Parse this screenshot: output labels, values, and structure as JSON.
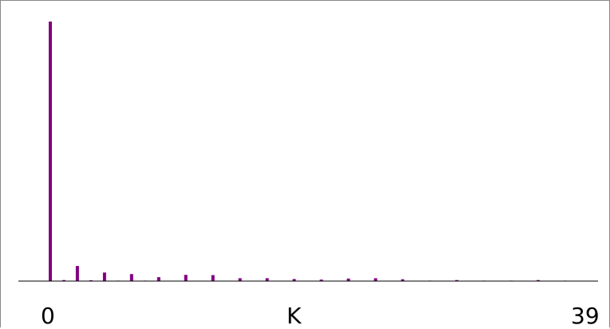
{
  "chart_data": {
    "type": "bar",
    "title": "",
    "xlabel": "K",
    "ylabel": "",
    "x_tick_labels": [
      "0",
      "39"
    ],
    "xlim": [
      0,
      39
    ],
    "ylim": [
      0,
      1
    ],
    "grid": false,
    "bar_color": "#800080",
    "axis_color": "#000000",
    "x": [
      0,
      1,
      2,
      3,
      4,
      5,
      6,
      7,
      8,
      9,
      10,
      11,
      12,
      13,
      14,
      15,
      16,
      17,
      18,
      19,
      20,
      21,
      22,
      23,
      24,
      25,
      26,
      27,
      28,
      29,
      30,
      31,
      32,
      33,
      34,
      35,
      36,
      37,
      38,
      39
    ],
    "values": [
      1.0,
      0.004,
      0.058,
      0.003,
      0.033,
      0.002,
      0.027,
      0.002,
      0.015,
      0.001,
      0.024,
      0.001,
      0.023,
      0.001,
      0.011,
      0.001,
      0.011,
      0.001,
      0.008,
      0.001,
      0.006,
      0.001,
      0.01,
      0.001,
      0.011,
      0.001,
      0.007,
      0.001,
      0.002,
      0.001,
      0.004,
      0.001,
      0.002,
      0.001,
      0.002,
      0.001,
      0.004,
      0.001,
      0.002,
      0.001
    ]
  }
}
